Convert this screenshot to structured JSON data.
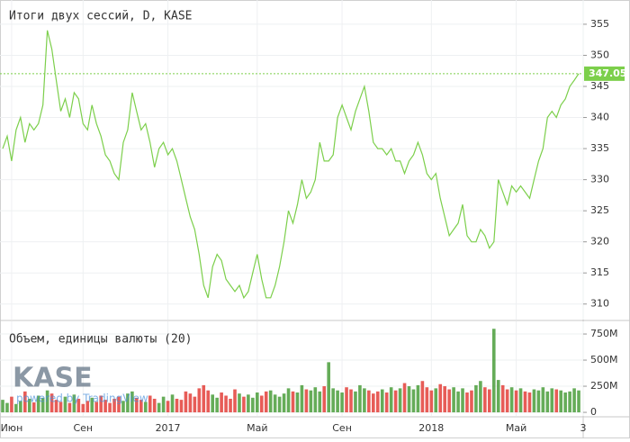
{
  "chart_data": [
    {
      "type": "line",
      "title": "Итоги двух сессий, D, KASE",
      "categories": [
        null,
        null,
        "Июн",
        null,
        null,
        null,
        null,
        null,
        null,
        null,
        null,
        null,
        null,
        null,
        null,
        null,
        null,
        null,
        "Сен",
        null,
        null,
        null,
        null,
        null,
        null,
        null,
        null,
        null,
        null,
        null,
        null,
        null,
        null,
        null,
        null,
        null,
        null,
        "2017",
        null,
        null,
        null,
        null,
        null,
        null,
        null,
        null,
        null,
        null,
        null,
        null,
        null,
        null,
        null,
        null,
        null,
        null,
        null,
        "Май",
        null,
        null,
        null,
        null,
        null,
        null,
        null,
        null,
        null,
        null,
        null,
        null,
        null,
        null,
        null,
        null,
        null,
        null,
        "Сен",
        null,
        null,
        null,
        null,
        null,
        null,
        null,
        null,
        null,
        null,
        null,
        null,
        null,
        null,
        null,
        null,
        null,
        null,
        null,
        "2018",
        null,
        null,
        null,
        null,
        null,
        null,
        null,
        null,
        null,
        null,
        null,
        null,
        null,
        null,
        null,
        null,
        null,
        null,
        "Май",
        null,
        null,
        null,
        null,
        null,
        null,
        null,
        null,
        null,
        null,
        null,
        null,
        null,
        null,
        "3"
      ],
      "series": [
        {
          "color": "#7ccf4b",
          "values": [
            335,
            337,
            333,
            338,
            340,
            336,
            339,
            338,
            339,
            342,
            354,
            351,
            346,
            341,
            343,
            340,
            344,
            343,
            339,
            338,
            342,
            339,
            337,
            334,
            333,
            331,
            330,
            336,
            338,
            344,
            341,
            338,
            339,
            336,
            332,
            335,
            336,
            334,
            335,
            333,
            330,
            327,
            324,
            322,
            318,
            313,
            311,
            316,
            318,
            317,
            314,
            313,
            312,
            313,
            311,
            312,
            315,
            318,
            314,
            311,
            311,
            313,
            316,
            320,
            325,
            323,
            326,
            330,
            327,
            328,
            330,
            336,
            333,
            333,
            334,
            340,
            342,
            340,
            338,
            341,
            343,
            345,
            341,
            336,
            335,
            335,
            334,
            335,
            333,
            333,
            331,
            333,
            334,
            336,
            334,
            331,
            330,
            331,
            327,
            324,
            321,
            322,
            323,
            326,
            321,
            320,
            320,
            322,
            321,
            319,
            320,
            330,
            328,
            326,
            329,
            328,
            329,
            328,
            327,
            330,
            333,
            335,
            340,
            341,
            340,
            342,
            343,
            345,
            346,
            347.05,
            null
          ]
        }
      ],
      "ylim": [
        307.5,
        358.9
      ],
      "yticks": [
        310,
        315,
        320,
        325,
        330,
        335,
        340,
        345,
        350,
        355
      ],
      "grid": true
    },
    {
      "type": "bar",
      "title": "Объем, единицы валюты (20)",
      "categories": [
        null,
        null,
        "Июн",
        null,
        null,
        null,
        null,
        null,
        null,
        null,
        null,
        null,
        null,
        null,
        null,
        null,
        null,
        null,
        "Сен",
        null,
        null,
        null,
        null,
        null,
        null,
        null,
        null,
        null,
        null,
        null,
        null,
        null,
        null,
        null,
        null,
        null,
        null,
        "2017",
        null,
        null,
        null,
        null,
        null,
        null,
        null,
        null,
        null,
        null,
        null,
        null,
        null,
        null,
        null,
        null,
        null,
        null,
        null,
        "Май",
        null,
        null,
        null,
        null,
        null,
        null,
        null,
        null,
        null,
        null,
        null,
        null,
        null,
        null,
        null,
        null,
        null,
        null,
        "Сен",
        null,
        null,
        null,
        null,
        null,
        null,
        null,
        null,
        null,
        null,
        null,
        null,
        null,
        null,
        null,
        null,
        null,
        null,
        null,
        "2018",
        null,
        null,
        null,
        null,
        null,
        null,
        null,
        null,
        null,
        null,
        null,
        null,
        null,
        null,
        null,
        null,
        null,
        null,
        "Май",
        null,
        null,
        null,
        null,
        null,
        null,
        null,
        null,
        null,
        null,
        null,
        null,
        null,
        null,
        "3"
      ],
      "values": [
        120,
        90,
        150,
        80,
        110,
        200,
        130,
        95,
        160,
        140,
        210,
        180,
        120,
        100,
        150,
        90,
        170,
        130,
        80,
        110,
        140,
        100,
        160,
        120,
        90,
        130,
        150,
        110,
        180,
        200,
        140,
        120,
        100,
        160,
        130,
        90,
        150,
        110,
        170,
        130,
        120,
        200,
        180,
        150,
        230,
        260,
        210,
        170,
        140,
        190,
        160,
        130,
        220,
        180,
        150,
        170,
        140,
        190,
        160,
        200,
        210,
        170,
        150,
        180,
        230,
        200,
        190,
        260,
        220,
        210,
        240,
        200,
        250,
        480,
        230,
        210,
        190,
        240,
        220,
        200,
        260,
        230,
        210,
        180,
        200,
        220,
        190,
        240,
        210,
        230,
        280,
        250,
        220,
        260,
        300,
        240,
        210,
        230,
        270,
        250,
        220,
        240,
        200,
        230,
        190,
        210,
        260,
        300,
        240,
        220,
        800,
        310,
        260,
        220,
        240,
        210,
        230,
        200,
        190,
        220,
        210,
        240,
        200,
        230,
        220,
        210,
        190,
        200,
        230,
        210,
        null
      ],
      "up_color": "#4a9e3b",
      "down_color": "#e3403a",
      "ylim": [
        -34,
        871
      ],
      "yticks": [
        {
          "value": 0,
          "label": "0"
        },
        {
          "value": 250,
          "label": "250M"
        },
        {
          "value": 500,
          "label": "500M"
        },
        {
          "value": 750,
          "label": "750M"
        }
      ],
      "grid": true
    }
  ],
  "watermark": {
    "logo": "KASE",
    "credit": "powered by TradingView"
  }
}
